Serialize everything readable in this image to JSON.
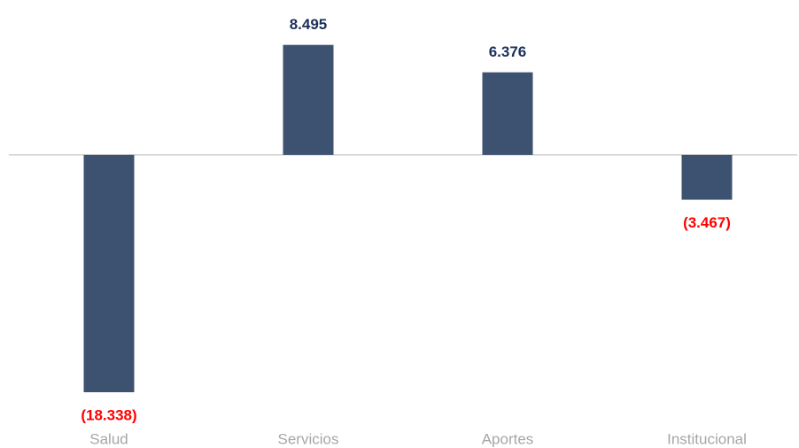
{
  "chart_data": {
    "type": "bar",
    "categories": [
      "Salud",
      "Servicios",
      "Aportes",
      "Institucional"
    ],
    "values": [
      -18.338,
      8.495,
      6.376,
      -3.467
    ],
    "value_labels": [
      "(18.338)",
      "8.495",
      "6.376",
      "(3.467)"
    ],
    "color": "#3d5270",
    "ylim": [
      -19.5,
      9.5
    ]
  }
}
